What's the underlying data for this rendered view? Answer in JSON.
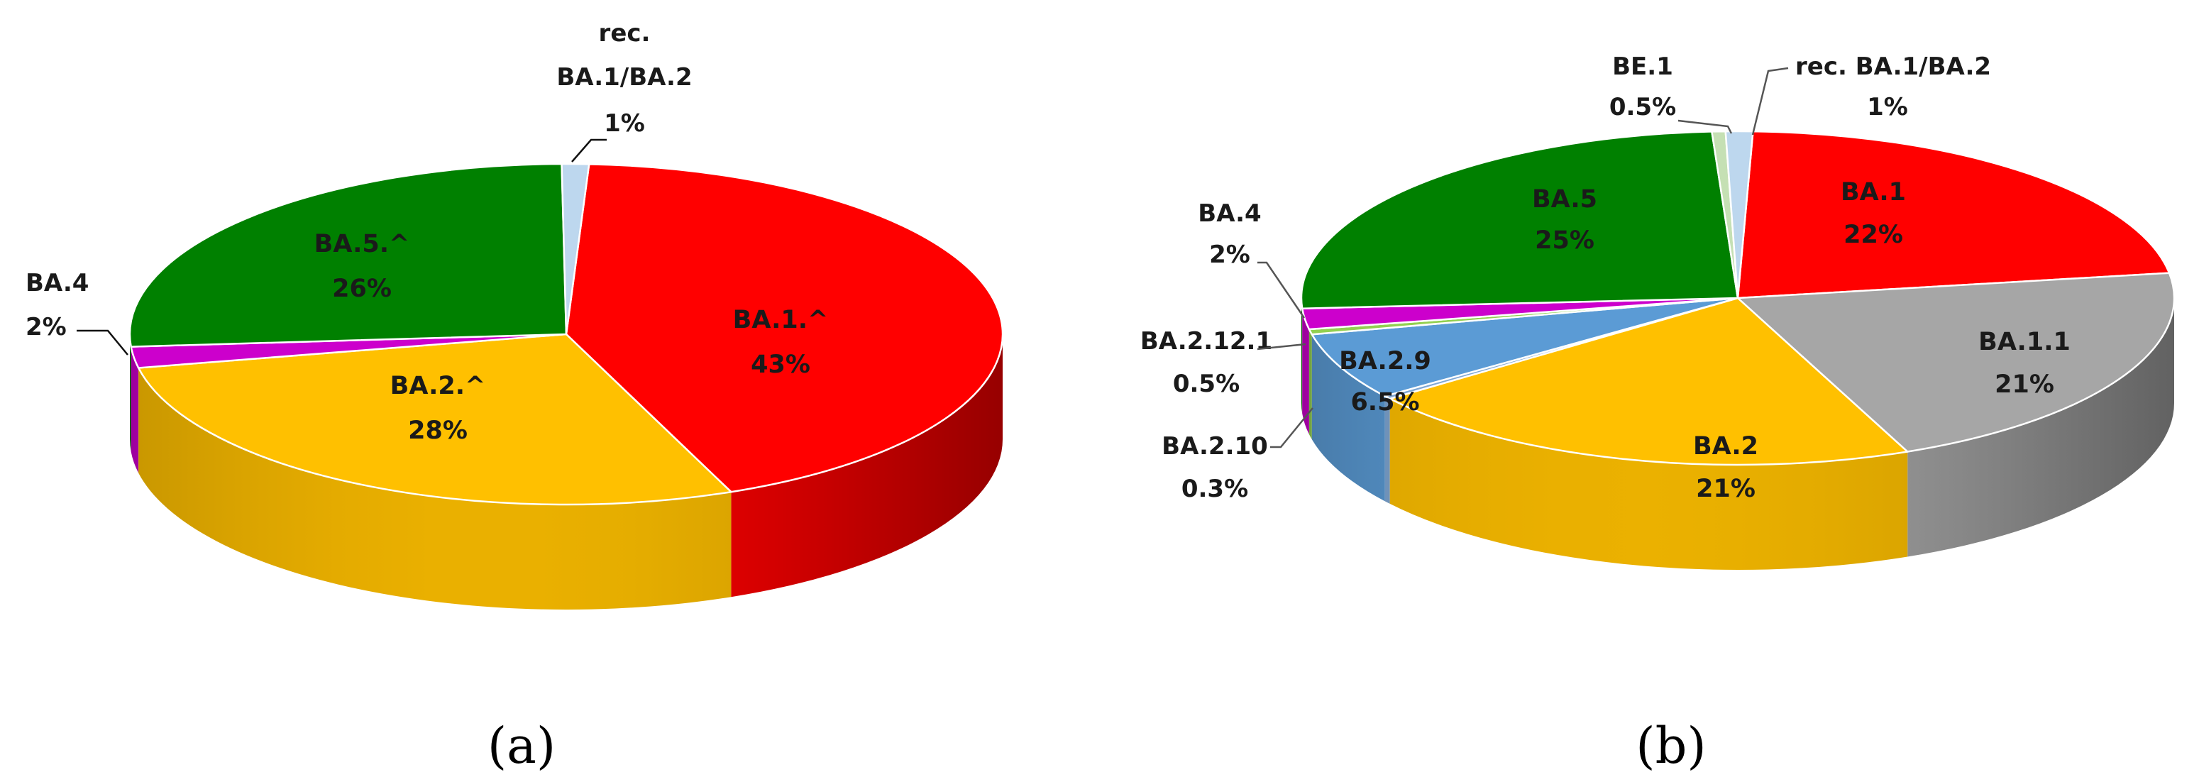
{
  "chart_data": [
    {
      "type": "pie",
      "caption": "(a)",
      "slices": [
        {
          "label": "BA.1.^",
          "value": 43,
          "value_label": "43%",
          "color": "#ff0000"
        },
        {
          "label": "BA.2.^",
          "value": 28,
          "value_label": "28%",
          "color": "#ffc000"
        },
        {
          "label": "BA.4",
          "value": 2,
          "value_label": "2%",
          "color": "#cc00cc"
        },
        {
          "label": "BA.5.^",
          "value": 26,
          "value_label": "26%",
          "color": "#008000"
        },
        {
          "label_lines": [
            "rec.",
            "BA.1/BA.2"
          ],
          "value": 1,
          "value_label": "1%",
          "color": "#bdd7ee"
        }
      ]
    },
    {
      "type": "pie",
      "caption": "(b)",
      "slices": [
        {
          "label": "BA.1",
          "value": 22,
          "value_label": "22%",
          "color": "#ff0000"
        },
        {
          "label": "BA.1.1",
          "value": 21,
          "value_label": "21%",
          "color": "#a6a6a6"
        },
        {
          "label": "BA.2",
          "value": 21,
          "value_label": "21%",
          "color": "#ffc000"
        },
        {
          "label": "BA.2.10",
          "value": 0.3,
          "value_label": "0.3%",
          "color": "#7fa7d4"
        },
        {
          "label": "BA.2.9",
          "value": 6.5,
          "value_label": "6.5%",
          "color": "#5b9bd5"
        },
        {
          "label": "BA.2.12.1",
          "value": 0.5,
          "value_label": "0.5%",
          "color": "#92d050"
        },
        {
          "label": "BA.4",
          "value": 2,
          "value_label": "2%",
          "color": "#cc00cc"
        },
        {
          "label": "BA.5",
          "value": 25,
          "value_label": "25%",
          "color": "#008000"
        },
        {
          "label": "BE.1",
          "value": 0.5,
          "value_label": "0.5%",
          "color": "#c5e0b4"
        },
        {
          "label": "rec. BA.1/BA.2",
          "value": 1,
          "value_label": "1%",
          "color": "#bdd7ee"
        }
      ]
    }
  ]
}
